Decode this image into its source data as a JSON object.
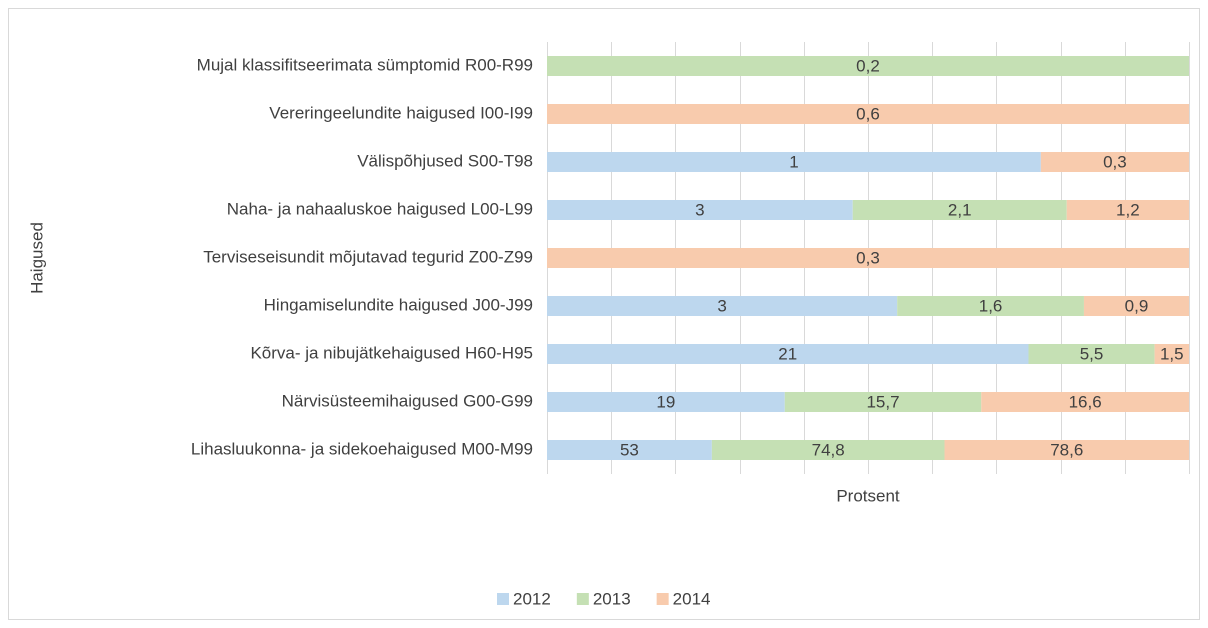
{
  "chart_data": {
    "type": "bar",
    "orientation": "horizontal",
    "stacking": "percent",
    "x_label": "Protsent",
    "y_label": "Haigused",
    "categories": [
      "Mujal klassifitseerimata sümptomid R00-R99",
      "Vereringeelundite haigused I00-I99",
      "Välispõhjused S00-T98",
      "Naha- ja nahaaluskoe haigused L00-L99",
      "Terviseseisundit mõjutavad tegurid Z00-Z99",
      "Hingamiselundite haigused J00-J99",
      "Kõrva- ja nibujätkehaigused H60-H95",
      "Närvisüsteemihaigused G00-G99",
      "Lihasluukonna- ja sidekoehaigused M00-M99"
    ],
    "series": [
      {
        "name": "2012",
        "color": "#bdd7ee",
        "values": [
          null,
          null,
          1,
          3,
          null,
          3,
          21,
          19,
          53
        ],
        "value_labels": [
          null,
          null,
          "1",
          "3",
          null,
          "3",
          "21",
          "19",
          "53"
        ]
      },
      {
        "name": "2013",
        "color": "#c5e0b4",
        "values": [
          0.2,
          null,
          null,
          2.1,
          null,
          1.6,
          5.5,
          15.7,
          74.8
        ],
        "value_labels": [
          "0,2",
          null,
          null,
          "2,1",
          null,
          "1,6",
          "5,5",
          "15,7",
          "74,8"
        ]
      },
      {
        "name": "2014",
        "color": "#f8cbad",
        "values": [
          null,
          0.6,
          0.3,
          1.2,
          0.3,
          0.9,
          1.5,
          16.6,
          78.6
        ],
        "value_labels": [
          null,
          "0,6",
          "0,3",
          "1,2",
          "0,3",
          "0,9",
          "1,5",
          "16,6",
          "78,6"
        ]
      }
    ],
    "xlim": [
      0,
      100
    ],
    "xticks": [
      0,
      10,
      20,
      30,
      40,
      50,
      60,
      70,
      80,
      90,
      100
    ],
    "grid": true,
    "legend": "bottom"
  }
}
